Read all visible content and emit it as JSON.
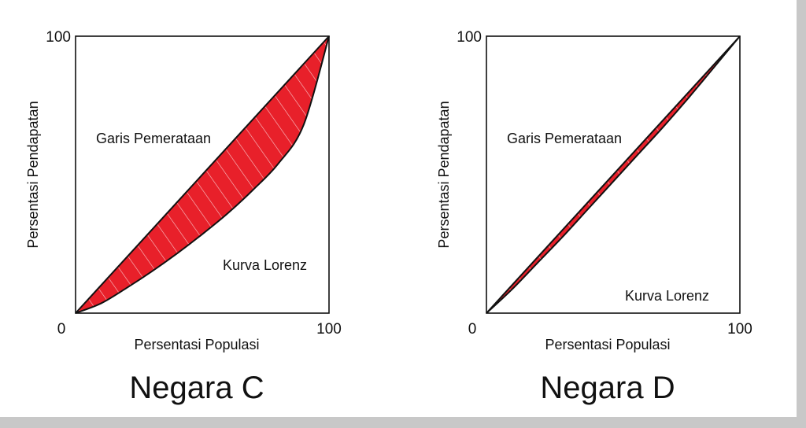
{
  "chart_data": [
    {
      "type": "area",
      "title": "Negara C",
      "xlabel": "Persentasi Populasi",
      "ylabel": "Persentasi Pendapatan",
      "xlim": [
        0,
        100
      ],
      "ylim": [
        0,
        100
      ],
      "x_ticks": [
        "0",
        "100"
      ],
      "y_ticks": [
        "100"
      ],
      "series": [
        {
          "name": "Garis Pemerataan",
          "x": [
            0,
            100
          ],
          "y": [
            0,
            100
          ],
          "color": "#111111"
        },
        {
          "name": "Kurva Lorenz",
          "x": [
            0,
            10,
            20,
            30,
            40,
            50,
            60,
            70,
            80,
            90,
            100
          ],
          "y": [
            0,
            3.5,
            9,
            15,
            21.5,
            28.5,
            36,
            44.5,
            54,
            68,
            100
          ],
          "color": "#111111"
        }
      ],
      "fill_color": "#e8202a",
      "annotations": [
        "Garis Pemerataan",
        "Kurva Lorenz"
      ],
      "grid": false
    },
    {
      "type": "area",
      "title": "Negara D",
      "xlabel": "Persentasi Populasi",
      "ylabel": "Persentasi Pendapatan",
      "xlim": [
        0,
        100
      ],
      "ylim": [
        0,
        100
      ],
      "x_ticks": [
        "0",
        "100"
      ],
      "y_ticks": [
        "100"
      ],
      "series": [
        {
          "name": "Garis Pemerataan",
          "x": [
            0,
            100
          ],
          "y": [
            0,
            100
          ],
          "color": "#111111"
        },
        {
          "name": "Kurva Lorenz",
          "x": [
            0,
            10,
            20,
            30,
            40,
            50,
            60,
            70,
            80,
            90,
            100
          ],
          "y": [
            0,
            8.5,
            18,
            27.5,
            37.5,
            47.5,
            57.5,
            67.5,
            78,
            89,
            100
          ],
          "color": "#111111"
        }
      ],
      "fill_color": "#e8202a",
      "annotations": [
        "Garis Pemerataan",
        "Kurva Lorenz"
      ],
      "grid": false
    }
  ]
}
